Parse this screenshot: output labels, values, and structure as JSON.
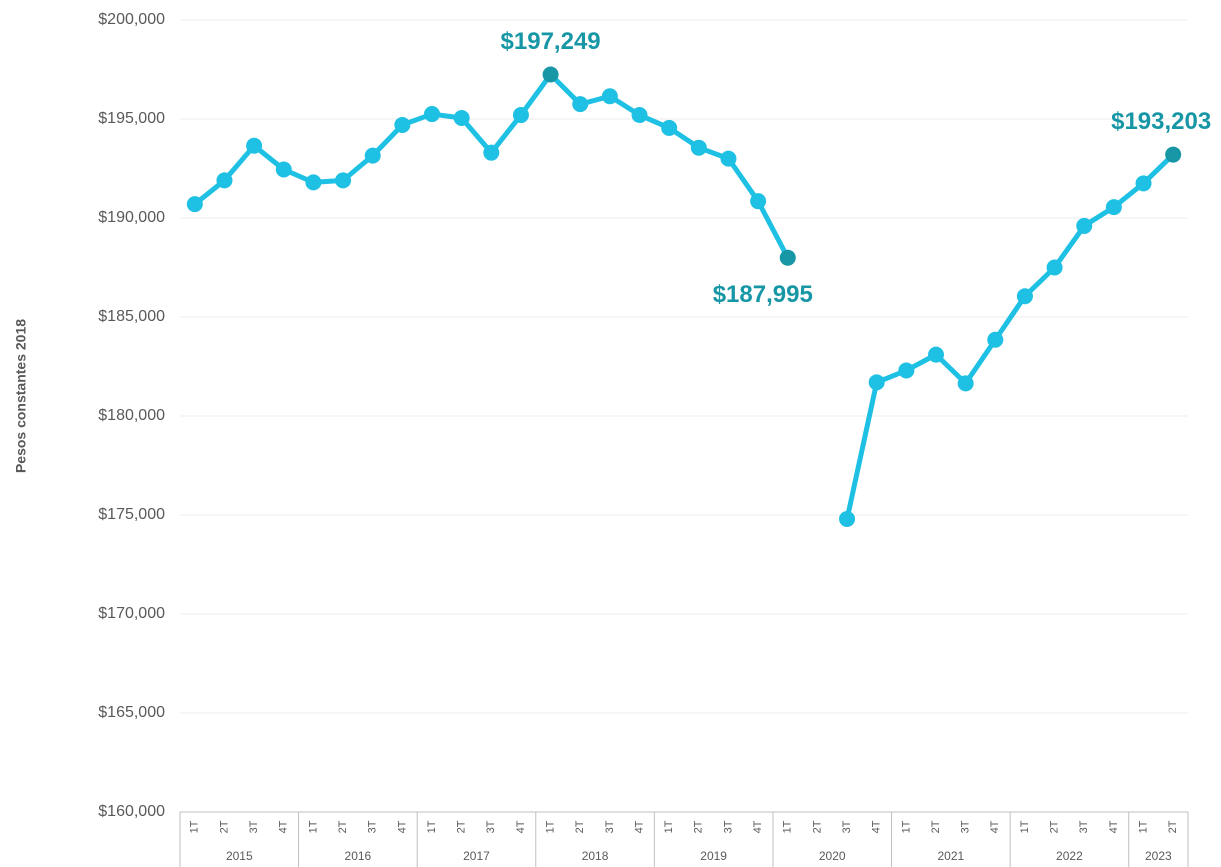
{
  "chart_data": {
    "type": "line",
    "y_label": "Pesos constantes 2018",
    "groups": [
      {
        "label": "2015",
        "quarters": [
          "1T",
          "2T",
          "3T",
          "4T"
        ]
      },
      {
        "label": "2016",
        "quarters": [
          "1T",
          "2T",
          "3T",
          "4T"
        ]
      },
      {
        "label": "2017",
        "quarters": [
          "1T",
          "2T",
          "3T",
          "4T"
        ]
      },
      {
        "label": "2018",
        "quarters": [
          "1T",
          "2T",
          "3T",
          "4T"
        ]
      },
      {
        "label": "2019",
        "quarters": [
          "1T",
          "2T",
          "3T",
          "4T"
        ]
      },
      {
        "label": "2020",
        "quarters": [
          "1T",
          "2T",
          "3T",
          "4T"
        ]
      },
      {
        "label": "2021",
        "quarters": [
          "1T",
          "2T",
          "3T",
          "4T"
        ]
      },
      {
        "label": "2022",
        "quarters": [
          "1T",
          "2T",
          "3T",
          "4T"
        ]
      },
      {
        "label": "2023",
        "quarters": [
          "1T",
          "2T"
        ]
      }
    ],
    "series": [
      {
        "name": "Pesos constantes 2018",
        "color": "#1ec0e3",
        "highlight_color": "#1797a6",
        "values": [
          190700,
          191900,
          193650,
          192450,
          191800,
          191900,
          193150,
          194700,
          195250,
          195050,
          193300,
          195200,
          197249,
          195750,
          196150,
          195200,
          194550,
          193550,
          193000,
          190850,
          187995,
          null,
          174800,
          181700,
          182300,
          183100,
          181650,
          183850,
          186050,
          187500,
          189600,
          190550,
          191750,
          193203
        ],
        "value_labels": [
          null,
          null,
          null,
          null,
          null,
          null,
          null,
          null,
          null,
          null,
          null,
          null,
          "$197,249",
          null,
          null,
          null,
          null,
          null,
          null,
          null,
          "$187,995",
          null,
          null,
          null,
          null,
          null,
          null,
          null,
          null,
          null,
          null,
          null,
          null,
          "$193,203"
        ]
      }
    ],
    "ylim": [
      160000,
      200000
    ],
    "yticks": [
      {
        "value": 160000,
        "label": "$160,000"
      },
      {
        "value": 165000,
        "label": "$165,000"
      },
      {
        "value": 170000,
        "label": "$170,000"
      },
      {
        "value": 175000,
        "label": "$175,000"
      },
      {
        "value": 180000,
        "label": "$180,000"
      },
      {
        "value": 185000,
        "label": "$185,000"
      },
      {
        "value": 190000,
        "label": "$190,000"
      },
      {
        "value": 195000,
        "label": "$195,000"
      },
      {
        "value": 200000,
        "label": "$200,000"
      }
    ],
    "grid": true
  }
}
